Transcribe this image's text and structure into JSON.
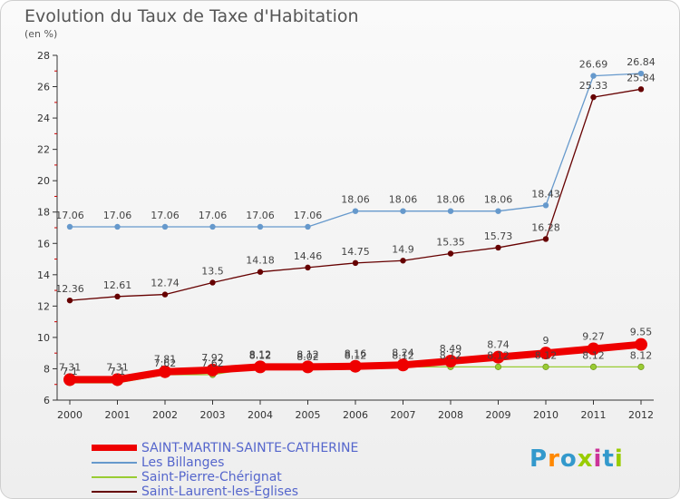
{
  "title": "Evolution du Taux de Taxe d'Habitation",
  "unit": "(en %)",
  "brand": "Proxiti",
  "colors": {
    "saint_martin": "#ee0000",
    "billanges": "#6699cc",
    "saint_pierre": "#99cc33",
    "saint_laurent": "#660000",
    "brand_letters": [
      "#3399cc",
      "#ff8800",
      "#3399cc",
      "#99cc00",
      "#cc3399",
      "#3399cc",
      "#99cc00"
    ]
  },
  "chart_data": {
    "type": "line",
    "x": [
      "2000",
      "2001",
      "2002",
      "2003",
      "2004",
      "2005",
      "2006",
      "2007",
      "2008",
      "2009",
      "2010",
      "2011",
      "2012"
    ],
    "ylim": [
      6,
      28
    ],
    "yticks": [
      "6",
      "8",
      "10",
      "12",
      "14",
      "16",
      "18",
      "20",
      "22",
      "24",
      "26",
      "28"
    ],
    "grid": false,
    "legend_position": "bottom-left",
    "series": [
      {
        "name": "SAINT-MARTIN-SAINTE-CATHERINE",
        "color": "#ee0000",
        "values": [
          7.31,
          7.31,
          7.81,
          7.92,
          8.12,
          8.12,
          8.16,
          8.24,
          8.49,
          8.74,
          9,
          9.27,
          9.55
        ],
        "labels": [
          "7.31",
          "7.31",
          "7.81",
          "7.92",
          "8.12",
          "8.12",
          "8.16",
          "8.24",
          "8.49",
          "8.74",
          "9",
          "9.27",
          "9.55"
        ]
      },
      {
        "name": "Les Billanges",
        "color": "#6699cc",
        "values": [
          17.06,
          17.06,
          17.06,
          17.06,
          17.06,
          17.06,
          18.06,
          18.06,
          18.06,
          18.06,
          18.43,
          26.69,
          26.84
        ],
        "labels": [
          "17.06",
          "17.06",
          "17.06",
          "17.06",
          "17.06",
          "17.06",
          "18.06",
          "18.06",
          "18.06",
          "18.06",
          "18.43",
          "26.69",
          "26.84"
        ]
      },
      {
        "name": "Saint-Pierre-Chérignat",
        "color": "#99cc33",
        "values": [
          7.1,
          7.1,
          7.62,
          7.62,
          8.12,
          8.02,
          8.12,
          8.12,
          8.12,
          8.12,
          8.12,
          8.12,
          8.12
        ],
        "labels": [
          "7.1",
          "7.1",
          "7.62",
          "7.62",
          "8.12",
          "8.02",
          "8.12",
          "8.12",
          "8.12",
          "8.12",
          "8.12",
          "8.12",
          "8.12"
        ]
      },
      {
        "name": "Saint-Laurent-les-Eglises",
        "color": "#660000",
        "values": [
          12.36,
          12.61,
          12.74,
          13.5,
          14.18,
          14.46,
          14.75,
          14.9,
          15.35,
          15.73,
          16.28,
          25.33,
          25.84
        ],
        "labels": [
          "12.36",
          "12.61",
          "12.74",
          "13.5",
          "14.18",
          "14.46",
          "14.75",
          "14.9",
          "15.35",
          "15.73",
          "16.28",
          "25.33",
          "25.84"
        ]
      }
    ]
  }
}
